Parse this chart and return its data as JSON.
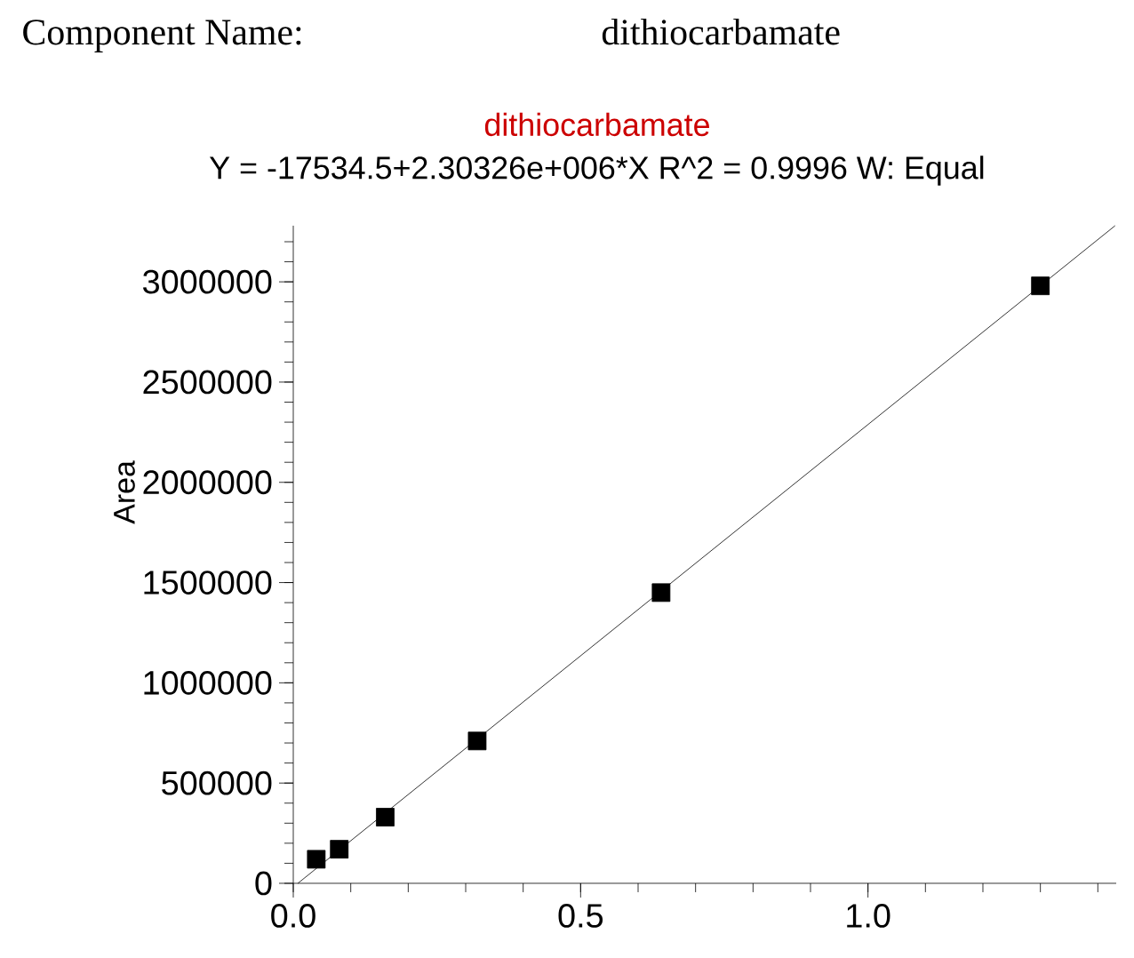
{
  "chart_data": {
    "type": "scatter",
    "title": "dithiocarbamate",
    "subtitle": "Y = -17534.5+2.30326e+006*X   R^2 = 0.9996   W: Equal",
    "ylabel": "Area",
    "annotations": [
      "Component Name:",
      "dithiocarbamate"
    ],
    "xlim": [
      0,
      1.432
    ],
    "ylim": [
      0,
      3280000
    ],
    "xticks": [
      {
        "value": 0,
        "label": "0.0"
      },
      {
        "value": 0.5,
        "label": "0.5"
      },
      {
        "value": 1.0,
        "label": "1.0"
      }
    ],
    "yticks": [
      0,
      500000,
      1000000,
      1500000,
      2000000,
      2500000,
      3000000
    ],
    "series": [
      {
        "color": "#000000",
        "marker": "square",
        "x": [
          0.04,
          0.08,
          0.16,
          0.32,
          0.64,
          1.3
        ],
        "values": [
          120000,
          170000,
          330000,
          710000,
          1450000,
          2980000
        ]
      },
      {
        "type": "line",
        "color": "#000000",
        "marker": "none",
        "x": [
          0.008,
          1.43
        ],
        "values": [
          0,
          3280000
        ]
      }
    ]
  }
}
